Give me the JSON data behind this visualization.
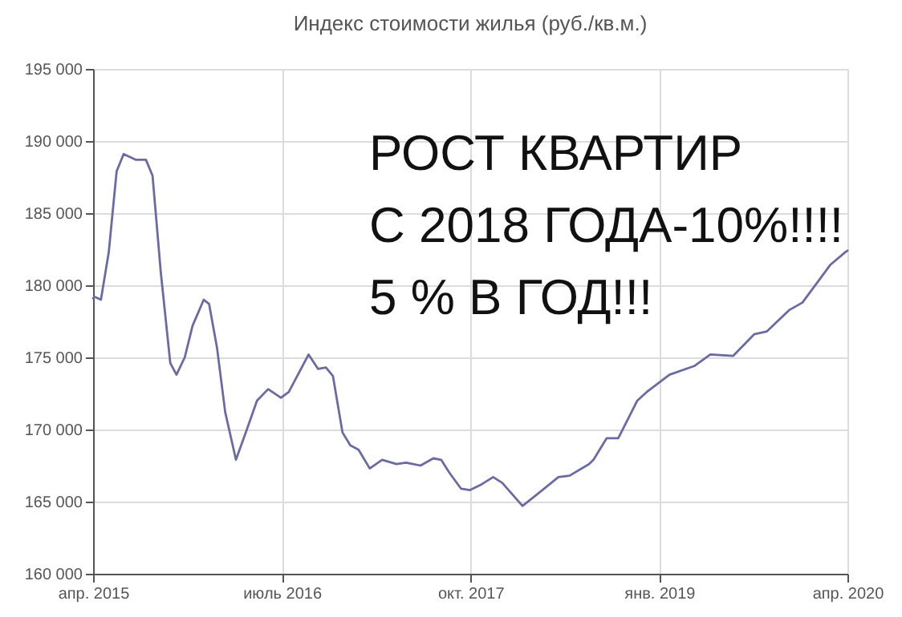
{
  "chart_data": {
    "type": "line",
    "title": "Индекс стоимости жилья (руб./кв.м.)",
    "annotations": [
      "РОСТ КВАРТИР",
      "С 2018 ГОДА-10%!!!!",
      "5 % В ГОД!!!"
    ],
    "x": [
      "2015-04-01",
      "2015-04-05",
      "2015-04-20",
      "2015-05-09",
      "2015-05-28",
      "2015-06-14",
      "2015-07-14",
      "2015-08-07",
      "2015-08-23",
      "2015-09-12",
      "2015-10-05",
      "2015-10-20",
      "2015-11-09",
      "2015-11-28",
      "2015-12-25",
      "2016-01-07",
      "2016-01-26",
      "2016-02-15",
      "2016-03-12",
      "2016-04-05",
      "2016-05-02",
      "2016-05-29",
      "2016-06-29",
      "2016-07-18",
      "2016-09-04",
      "2016-09-27",
      "2016-10-16",
      "2016-11-02",
      "2016-11-25",
      "2016-12-14",
      "2017-01-03",
      "2017-01-30",
      "2017-03-01",
      "2017-04-05",
      "2017-04-28",
      "2017-06-02",
      "2017-07-03",
      "2017-07-22",
      "2017-08-11",
      "2017-09-08",
      "2017-09-30",
      "2017-10-28",
      "2017-11-25",
      "2017-12-17",
      "2018-02-04",
      "2018-03-20",
      "2018-05-02",
      "2018-05-29",
      "2018-07-15",
      "2018-07-26",
      "2018-08-27",
      "2018-09-24",
      "2018-11-09",
      "2018-12-02",
      "2019-01-26",
      "2019-03-27",
      "2019-05-05",
      "2019-06-29",
      "2019-08-19",
      "2019-09-19",
      "2019-11-13",
      "2019-12-14",
      "2020-02-19",
      "2020-03-27",
      "2020-04-01"
    ],
    "series": [
      {
        "color": "#6b6ba0",
        "values": [
          179100,
          179200,
          179000,
          182300,
          187900,
          189100,
          188700,
          188700,
          187600,
          180900,
          174600,
          173800,
          175000,
          177200,
          179000,
          178700,
          175700,
          171200,
          167900,
          169800,
          172000,
          172800,
          172200,
          172600,
          175200,
          174200,
          174300,
          173700,
          169800,
          168900,
          168600,
          167300,
          167900,
          167600,
          167700,
          167500,
          168000,
          167900,
          167000,
          165900,
          165800,
          166200,
          166700,
          166300,
          164700,
          165700,
          166700,
          166800,
          167600,
          167900,
          169400,
          169400,
          172000,
          172600,
          173800,
          174400,
          175200,
          175100,
          176600,
          176800,
          178300,
          178800,
          181400,
          182300,
          182400
        ]
      }
    ],
    "xlim": [
      "2015-04-01",
      "2020-04-01"
    ],
    "xticks": [
      {
        "value": "2015-04-01",
        "label": "апр. 2015"
      },
      {
        "value": "2016-07-01",
        "label": "июль 2016"
      },
      {
        "value": "2017-10-01",
        "label": "окт. 2017"
      },
      {
        "value": "2019-01-01",
        "label": "янв. 2019"
      },
      {
        "value": "2020-04-01",
        "label": "апр. 2020"
      }
    ],
    "ylim": [
      160000,
      195000
    ],
    "yticks": [
      {
        "value": 160000,
        "label": "160 000"
      },
      {
        "value": 165000,
        "label": "165 000"
      },
      {
        "value": 170000,
        "label": "170 000"
      },
      {
        "value": 175000,
        "label": "175 000"
      },
      {
        "value": 180000,
        "label": "180 000"
      },
      {
        "value": 185000,
        "label": "185 000"
      },
      {
        "value": 190000,
        "label": "190 000"
      },
      {
        "value": 195000,
        "label": "195 000"
      }
    ],
    "grid": true,
    "marker": "none",
    "line_style": "solid"
  }
}
